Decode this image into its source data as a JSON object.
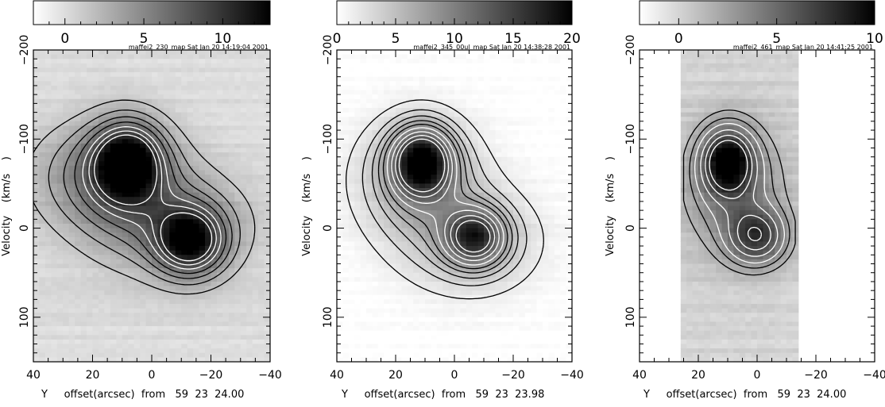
{
  "chart_data": [
    {
      "type": "heatmap",
      "title": "maffei2_230_map Sat Jan 20 14:19:04 2001",
      "xlabel": "Y     offset(arcsec)  from   59  23  24.00",
      "ylabel": "Velocity    (km/s    )",
      "xlim": [
        40,
        -40
      ],
      "ylim": [
        -200,
        150
      ],
      "x_ticks": [
        "40",
        "20",
        "0",
        "−20",
        "−40"
      ],
      "y_ticks": [
        "−200",
        "−100",
        "0",
        "100"
      ],
      "colorbar": {
        "range": [
          -2,
          13
        ],
        "tick_values": [
          0,
          5,
          10
        ],
        "tick_labels": [
          "0",
          "5",
          "10"
        ]
      },
      "data_extent": [
        40,
        -40
      ],
      "peaks": [
        {
          "x": 8,
          "y": -75,
          "amp": 12,
          "sx": 8,
          "sy": 30
        },
        {
          "x": -13,
          "y": 15,
          "amp": 11,
          "sx": 8,
          "sy": 26
        },
        {
          "x": 15,
          "y": -60,
          "amp": 6,
          "sx": 16,
          "sy": 40
        },
        {
          "x": -5,
          "y": -5,
          "amp": 5,
          "sx": 18,
          "sy": 40
        }
      ],
      "contour_levels_black": [
        1.5,
        3,
        4.5,
        6
      ],
      "contour_levels_white": [
        7.5,
        9,
        10.5
      ]
    },
    {
      "type": "heatmap",
      "title": "maffei2_345_00ul_map Sat Jan 20 14:38:28 2001",
      "xlabel": "Y     offset(arcsec)  from   59  23  23.98",
      "ylabel": "Velocity    (km/s    )",
      "xlim": [
        40,
        -40
      ],
      "ylim": [
        -200,
        150
      ],
      "x_ticks": [
        "40",
        "20",
        "0",
        "−20",
        "−40"
      ],
      "y_ticks": [
        "−200",
        "−100",
        "0",
        "100"
      ],
      "colorbar": {
        "range": [
          0,
          20
        ],
        "tick_values": [
          0,
          5,
          10,
          15,
          20
        ],
        "tick_labels": [
          "0",
          "5",
          "10",
          "15",
          "20"
        ]
      },
      "data_extent": [
        40,
        -40
      ],
      "peaks": [
        {
          "x": 11,
          "y": -75,
          "amp": 17,
          "sx": 7,
          "sy": 26
        },
        {
          "x": -7,
          "y": 10,
          "amp": 13,
          "sx": 7,
          "sy": 22
        },
        {
          "x": 12,
          "y": -55,
          "amp": 7,
          "sx": 14,
          "sy": 45
        },
        {
          "x": -5,
          "y": 15,
          "amp": 5,
          "sx": 16,
          "sy": 40
        }
      ],
      "contour_levels_black": [
        1.5,
        3,
        4.5,
        6,
        7.5
      ],
      "contour_levels_white": [
        9,
        11,
        13,
        15
      ]
    },
    {
      "type": "heatmap",
      "title": "maffei2_461_map Sat Jan 20 14:41:25 2001",
      "xlabel": "Y     offset(arcsec)  from   59  23  24.00",
      "ylabel": "Velocity    (km/s    )",
      "xlim": [
        40,
        -40
      ],
      "ylim": [
        -200,
        150
      ],
      "x_ticks": [
        "40",
        "20",
        "0",
        "−20",
        "−40"
      ],
      "y_ticks": [
        "−200",
        "−100",
        "0",
        "100"
      ],
      "colorbar": {
        "range": [
          -2,
          10
        ],
        "tick_values": [
          0,
          5,
          10
        ],
        "tick_labels": [
          "0",
          "5",
          "10"
        ]
      },
      "data_extent": [
        25,
        -13
      ],
      "peaks": [
        {
          "x": 10,
          "y": -75,
          "amp": 9,
          "sx": 6,
          "sy": 25
        },
        {
          "x": 0,
          "y": 10,
          "amp": 6.5,
          "sx": 7,
          "sy": 22
        },
        {
          "x": 8,
          "y": -45,
          "amp": 4,
          "sx": 12,
          "sy": 50
        }
      ],
      "contour_levels_black": [
        1.5,
        2.5
      ],
      "contour_levels_white": [
        3.5,
        5,
        6.5,
        8
      ]
    }
  ]
}
